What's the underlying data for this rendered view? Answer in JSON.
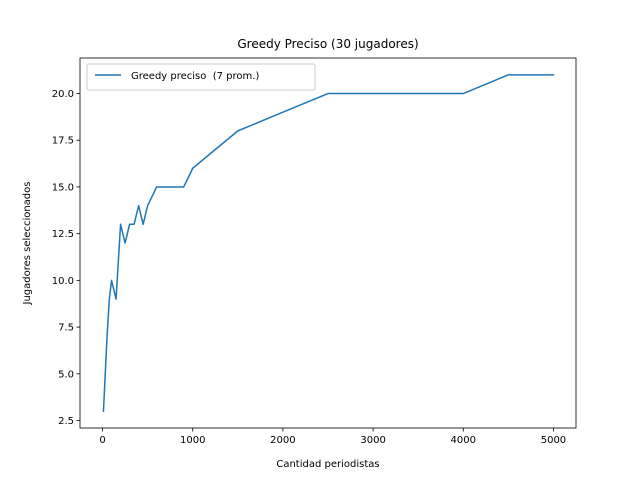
{
  "chart_data": {
    "type": "line",
    "title": "Greedy Preciso (30 jugadores)",
    "xlabel": "Cantidad periodistas",
    "ylabel": "Jugadores seleccionados",
    "xlim": [
      -250,
      5250
    ],
    "ylim": [
      2.1,
      21.9
    ],
    "xticks": [
      0,
      1000,
      2000,
      3000,
      4000,
      5000
    ],
    "xtick_labels": [
      "0",
      "1000",
      "2000",
      "3000",
      "4000",
      "5000"
    ],
    "yticks": [
      2.5,
      5.0,
      7.5,
      10.0,
      12.5,
      15.0,
      17.5,
      20.0
    ],
    "ytick_labels": [
      "2.5",
      "5.0",
      "7.5",
      "10.0",
      "12.5",
      "15.0",
      "17.5",
      "20.0"
    ],
    "grid": false,
    "legend_position": "upper-left",
    "line_color": "#1f77b4",
    "series": [
      {
        "name": "Greedy preciso  (7 prom.)",
        "x": [
          10,
          50,
          75,
          100,
          150,
          200,
          250,
          300,
          350,
          400,
          450,
          500,
          550,
          600,
          700,
          800,
          900,
          1000,
          1500,
          2000,
          2500,
          3000,
          3500,
          4000,
          4500,
          5000
        ],
        "y": [
          3,
          7,
          9,
          10,
          9,
          13,
          12,
          13,
          13,
          14,
          13,
          14,
          14.5,
          15,
          15,
          15,
          15,
          16,
          18,
          19,
          20,
          20,
          20,
          20,
          21,
          21
        ]
      }
    ]
  }
}
